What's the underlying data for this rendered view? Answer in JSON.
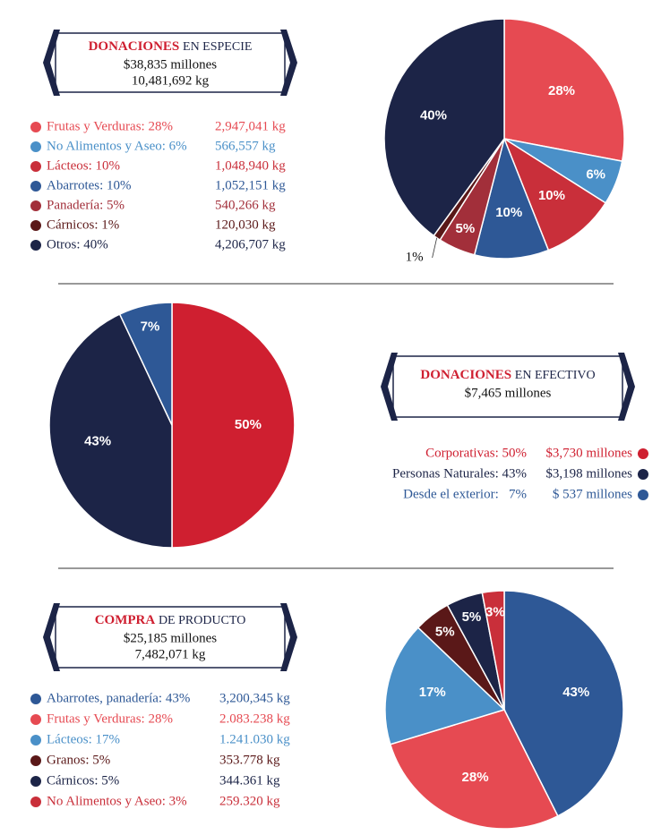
{
  "chart_data": [
    {
      "type": "pie",
      "title": [
        "DONACIONES",
        "EN ESPECIE"
      ],
      "lines": [
        "$38,835 millones",
        "10,481,692 kg"
      ],
      "categories": [
        "Frutas y Verduras: 28%",
        "No Alimentos y Aseo: 6%",
        "Lácteos: 10%",
        "Abarrotes: 10%",
        "Panadería: 5%",
        "Cárnicos: 1%",
        "Otros: 40%"
      ],
      "amounts": [
        "2,947,041 kg",
        "566,557 kg",
        "1,048,940 kg",
        "1,052,151 kg",
        "540,266 kg",
        "120,030 kg",
        "4,206,707 kg"
      ],
      "values": [
        28,
        6,
        10,
        10,
        5,
        1,
        40
      ],
      "value_labels": [
        "28%",
        "6%",
        "10%",
        "10%",
        "5%",
        "1%",
        "40%"
      ],
      "colors": [
        "#e64a52",
        "#4a90c8",
        "#c92f3a",
        "#2e5896",
        "#a22f3a",
        "#5a1818",
        "#1c2447"
      ]
    },
    {
      "type": "pie",
      "title": [
        "DONACIONES",
        "EN EFECTIVO"
      ],
      "lines": [
        "$7,465 millones"
      ],
      "categories": [
        "Corporativas: 50%",
        "Personas Naturales: 43%",
        "Desde el exterior:   7%"
      ],
      "amounts": [
        "$3,730 millones",
        "$3,198 millones",
        "$ 537 millones"
      ],
      "values": [
        50,
        43,
        7
      ],
      "value_labels": [
        "50%",
        "43%",
        "7%"
      ],
      "colors": [
        "#cf1f30",
        "#1c2447",
        "#2e5896"
      ]
    },
    {
      "type": "pie",
      "title": [
        "COMPRA",
        "DE PRODUCTO"
      ],
      "lines": [
        "$25,185 millones",
        "7,482,071 kg"
      ],
      "categories": [
        "Abarrotes, panadería: 43%",
        "Frutas y Verduras: 28%",
        "Lácteos: 17%",
        "Granos: 5%",
        "Cárnicos: 5%",
        "No Alimentos y Aseo: 3%"
      ],
      "amounts": [
        "3,200,345 kg",
        "2.083.238 kg",
        "1.241.030 kg",
        "353.778 kg",
        "344.361 kg",
        "259.320 kg"
      ],
      "values": [
        43,
        28,
        17,
        5,
        5,
        3
      ],
      "value_labels": [
        "43%",
        "28%",
        "17%",
        "5%",
        "5%",
        "3%"
      ],
      "colors": [
        "#2e5896",
        "#e64a52",
        "#4a90c8",
        "#5a1818",
        "#1c2447",
        "#c92f3a"
      ]
    }
  ]
}
